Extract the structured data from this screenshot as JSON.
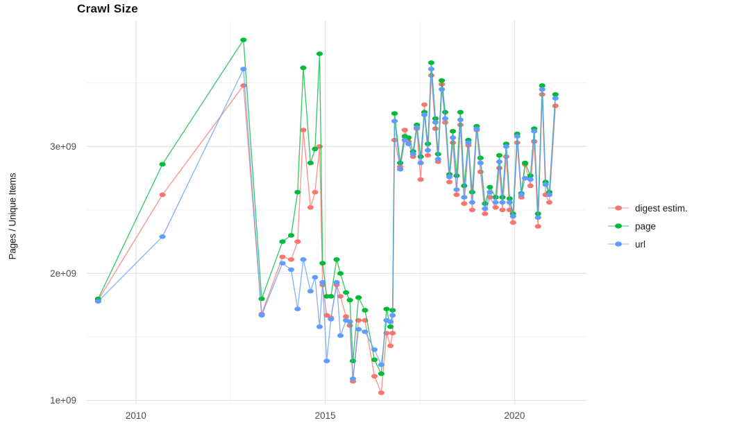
{
  "chart_data": {
    "type": "line",
    "title": "Crawl Size",
    "ylabel": "Pages / Unique Items",
    "xlabel": "",
    "legend_position": "right",
    "grid": true,
    "value_scale": "1e9",
    "xlim": [
      2008.7,
      2021.9
    ],
    "ylim": [
      0.97,
      3.99
    ],
    "x_ticks": [
      {
        "value": 2010,
        "label": "2010"
      },
      {
        "value": 2015,
        "label": "2015"
      },
      {
        "value": 2020,
        "label": "2020"
      }
    ],
    "y_ticks": [
      {
        "value": 1,
        "label": "1e+09"
      },
      {
        "value": 2,
        "label": "2e+09"
      },
      {
        "value": 3,
        "label": "3e+09"
      }
    ],
    "x_minor": [
      2012.5,
      2017.5
    ],
    "y_minor": [
      1.5,
      2.5,
      3.5
    ],
    "x": [
      2009.0,
      2010.7,
      2012.84,
      2013.32,
      2013.87,
      2014.1,
      2014.27,
      2014.42,
      2014.61,
      2014.73,
      2014.85,
      2014.93,
      2015.04,
      2015.15,
      2015.3,
      2015.4,
      2015.55,
      2015.65,
      2015.73,
      2015.88,
      2016.05,
      2016.3,
      2016.48,
      2016.62,
      2016.72,
      2016.78,
      2016.83,
      2016.98,
      2017.1,
      2017.2,
      2017.32,
      2017.42,
      2017.52,
      2017.62,
      2017.71,
      2017.8,
      2017.91,
      2017.98,
      2018.08,
      2018.17,
      2018.28,
      2018.37,
      2018.47,
      2018.57,
      2018.67,
      2018.78,
      2018.88,
      2019.0,
      2019.1,
      2019.22,
      2019.35,
      2019.5,
      2019.6,
      2019.68,
      2019.78,
      2019.87,
      2019.96,
      2020.07,
      2020.18,
      2020.28,
      2020.42,
      2020.52,
      2020.62,
      2020.73,
      2020.82,
      2020.92,
      2021.08
    ],
    "series": [
      {
        "id": "digest",
        "name": "digest estim.",
        "color": "#F8766D",
        "values": [
          1.79,
          2.62,
          3.48,
          1.68,
          2.13,
          2.11,
          2.25,
          3.13,
          2.52,
          2.64,
          3.0,
          1.91,
          1.67,
          1.65,
          1.91,
          1.82,
          1.66,
          1.59,
          1.15,
          1.63,
          1.63,
          1.19,
          1.06,
          1.53,
          1.43,
          1.53,
          3.05,
          2.84,
          3.13,
          3.04,
          2.92,
          3.14,
          2.74,
          3.33,
          2.93,
          3.56,
          3.14,
          2.88,
          3.49,
          3.19,
          2.72,
          3.03,
          2.62,
          3.17,
          2.55,
          3.01,
          2.5,
          3.13,
          2.8,
          2.47,
          2.6,
          2.52,
          2.83,
          2.5,
          2.92,
          2.5,
          2.4,
          3.03,
          2.6,
          2.86,
          2.69,
          3.04,
          2.37,
          3.41,
          2.62,
          2.56,
          3.32
        ]
      },
      {
        "id": "page",
        "name": "page",
        "color": "#00BA38",
        "values": [
          1.8,
          2.86,
          3.84,
          1.8,
          2.25,
          2.3,
          2.64,
          3.62,
          2.87,
          2.98,
          3.73,
          2.08,
          1.82,
          1.82,
          2.11,
          2.0,
          1.85,
          1.79,
          1.31,
          1.81,
          1.71,
          1.32,
          1.21,
          1.72,
          1.58,
          1.71,
          3.26,
          2.87,
          3.08,
          3.07,
          2.96,
          3.17,
          2.92,
          3.27,
          3.02,
          3.66,
          3.22,
          2.94,
          3.52,
          3.27,
          2.78,
          3.12,
          2.77,
          3.27,
          2.69,
          3.05,
          2.64,
          3.16,
          2.91,
          2.55,
          2.68,
          2.6,
          2.93,
          2.6,
          3.02,
          2.59,
          2.47,
          3.1,
          2.63,
          2.87,
          2.77,
          3.14,
          2.47,
          3.48,
          2.72,
          2.64,
          3.41
        ]
      },
      {
        "id": "url",
        "name": "url",
        "color": "#619CFF",
        "values": [
          1.78,
          2.29,
          3.61,
          1.67,
          2.08,
          2.03,
          1.72,
          2.11,
          1.86,
          1.97,
          1.58,
          1.93,
          1.31,
          1.64,
          1.93,
          1.51,
          1.63,
          1.62,
          1.17,
          1.56,
          1.54,
          1.4,
          1.28,
          1.63,
          1.62,
          1.67,
          3.2,
          2.82,
          3.05,
          3.02,
          2.94,
          3.15,
          2.87,
          3.25,
          2.97,
          3.61,
          3.19,
          2.9,
          3.45,
          3.22,
          2.76,
          3.07,
          2.66,
          3.21,
          2.6,
          3.03,
          2.56,
          3.14,
          2.87,
          2.51,
          2.64,
          2.56,
          2.88,
          2.56,
          3.0,
          2.56,
          2.45,
          3.08,
          2.62,
          2.75,
          2.74,
          3.12,
          2.44,
          3.45,
          2.7,
          2.62,
          3.38
        ]
      }
    ]
  }
}
